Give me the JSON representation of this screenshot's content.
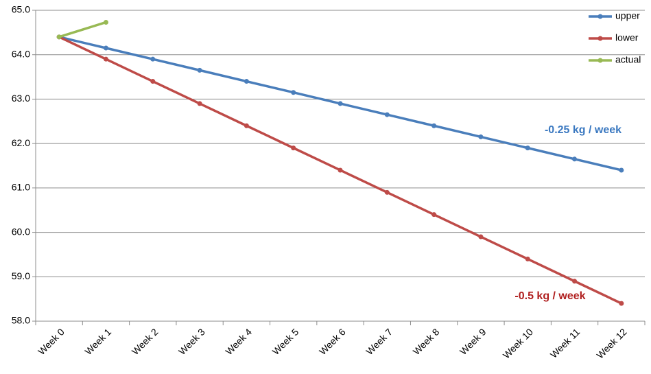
{
  "chart_data": {
    "type": "line",
    "categories": [
      "Week 0",
      "Week 1",
      "Week 2",
      "Week 3",
      "Week 4",
      "Week 5",
      "Week 6",
      "Week 7",
      "Week 8",
      "Week 9",
      "Week 10",
      "Week 11",
      "Week 12"
    ],
    "series": [
      {
        "name": "upper",
        "color": "#4a7ebb",
        "values": [
          64.4,
          64.15,
          63.9,
          63.65,
          63.4,
          63.15,
          62.9,
          62.65,
          62.4,
          62.15,
          61.9,
          61.65,
          61.4
        ]
      },
      {
        "name": "lower",
        "color": "#be4b48",
        "values": [
          64.4,
          63.9,
          63.4,
          62.9,
          62.4,
          61.9,
          61.4,
          60.9,
          60.4,
          59.9,
          59.4,
          58.9,
          58.4
        ]
      },
      {
        "name": "actual",
        "color": "#98b954",
        "values": [
          64.4,
          64.73,
          null,
          null,
          null,
          null,
          null,
          null,
          null,
          null,
          null,
          null,
          null
        ]
      }
    ],
    "ylim": [
      58,
      65
    ],
    "yticks": [
      {
        "value": 58,
        "label": "58.0"
      },
      {
        "value": 59,
        "label": "59.0"
      },
      {
        "value": 60,
        "label": "60.0"
      },
      {
        "value": 61,
        "label": "61.0"
      },
      {
        "value": 62,
        "label": "62.0"
      },
      {
        "value": 63,
        "label": "63.0"
      },
      {
        "value": 64,
        "label": "64.0"
      },
      {
        "value": 65,
        "label": "65.0"
      }
    ],
    "grid": true,
    "legend": "upper right",
    "annotations": [
      {
        "text": "-0.25 kg / week",
        "color": "#3a78c0"
      },
      {
        "text": "-0.5 kg / week",
        "color": "#b01f1f"
      }
    ]
  }
}
